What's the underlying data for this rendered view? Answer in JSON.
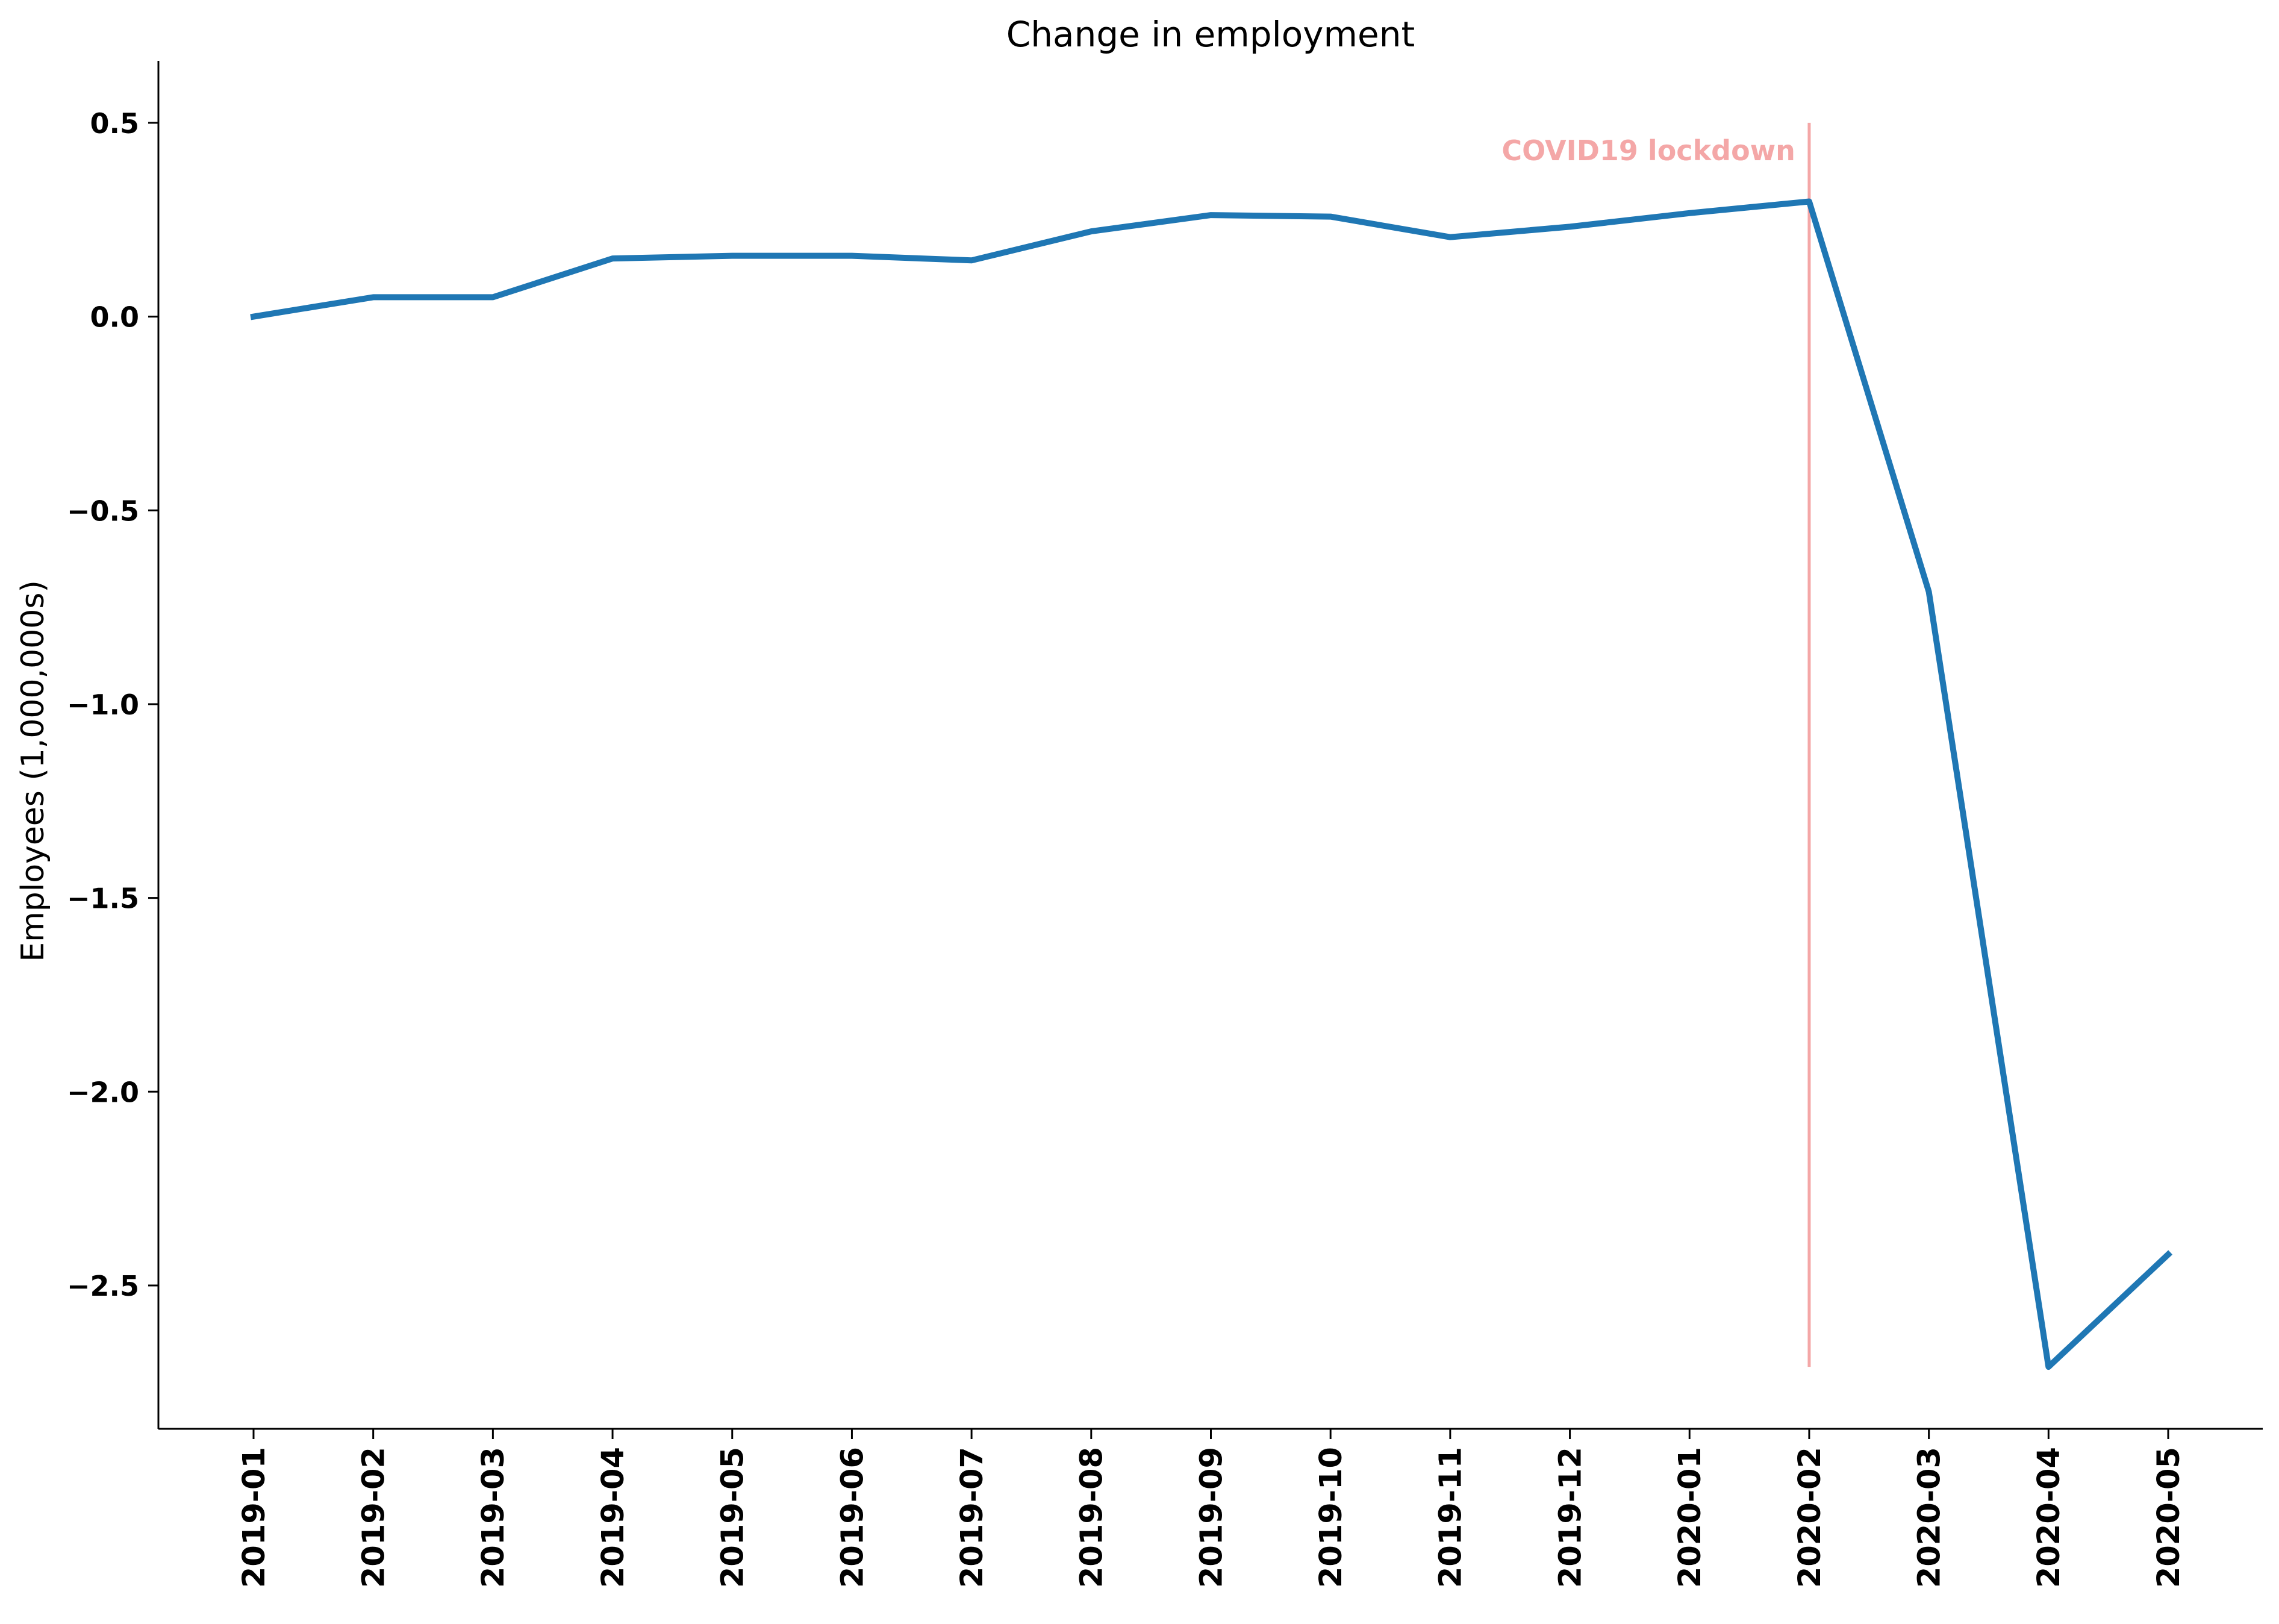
{
  "chart_data": {
    "type": "line",
    "title": "Change in employment",
    "xlabel": "",
    "ylabel": "Employees (1,000,000s)",
    "categories": [
      "2019-01",
      "2019-02",
      "2019-03",
      "2019-04",
      "2019-05",
      "2019-06",
      "2019-07",
      "2019-08",
      "2019-09",
      "2019-10",
      "2019-11",
      "2019-12",
      "2020-01",
      "2020-02",
      "2020-03",
      "2020-04",
      "2020-05"
    ],
    "series": [
      {
        "values": [
          0.0,
          0.05,
          0.05,
          0.15,
          0.157,
          0.157,
          0.145,
          0.22,
          0.262,
          0.258,
          0.205,
          0.232,
          0.267,
          0.297,
          -0.71,
          -2.71,
          -2.42
        ],
        "color": "#1f77b4"
      }
    ],
    "yticks": [
      0.5,
      0.0,
      -0.5,
      -1.0,
      -1.5,
      -2.0,
      -2.5
    ],
    "ytick_labels": [
      "0.5",
      "0.0",
      "−0.5",
      "−1.0",
      "−1.5",
      "−2.0",
      "−2.5"
    ],
    "ylim": [
      -2.87,
      0.66
    ],
    "grid": false,
    "annotations": [
      {
        "type": "vline",
        "x": "2020-02",
        "y_range": [
          -2.71,
          0.5
        ],
        "color": "#f4a7a7",
        "label": "COVID19 lockdown",
        "label_color": "#f4a7a7"
      }
    ]
  }
}
